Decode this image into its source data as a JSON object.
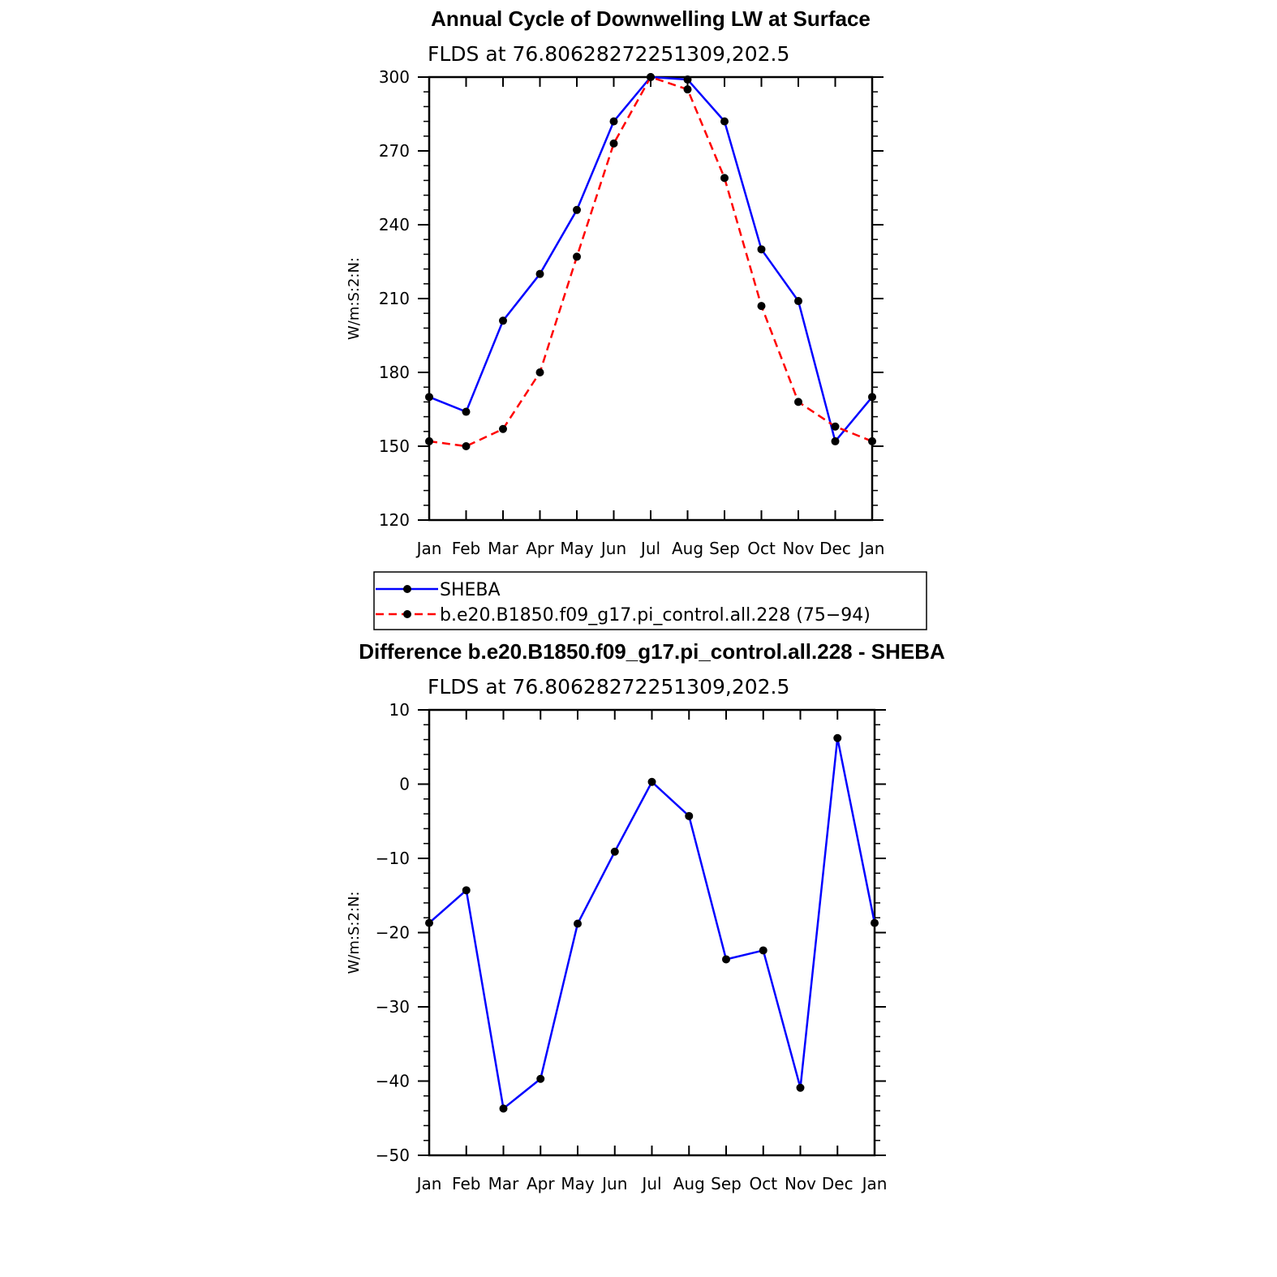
{
  "chart_data": [
    {
      "type": "line",
      "title": "Annual Cycle of Downwelling LW at Surface",
      "subtitle": "FLDS at 76.80628272251309,202.5",
      "ylabel": "W/m:S:2:N:",
      "categories": [
        "Jan",
        "Feb",
        "Mar",
        "Apr",
        "May",
        "Jun",
        "Jul",
        "Aug",
        "Sep",
        "Oct",
        "Nov",
        "Dec",
        "Jan"
      ],
      "ylim": [
        120,
        300
      ],
      "yticks": [
        120,
        150,
        180,
        210,
        240,
        270,
        300
      ],
      "series": [
        {
          "name": "SHEBA",
          "color": "#0000ff",
          "dash": "solid",
          "values": [
            170,
            164,
            201,
            220,
            246,
            282,
            300,
            299,
            282,
            230,
            209,
            152,
            170
          ]
        },
        {
          "name": "b.e20.B1850.f09_g17.pi_control.all.228 (75−94)",
          "color": "#ff0000",
          "dash": "dashed",
          "values": [
            152,
            150,
            157,
            180,
            227,
            273,
            300,
            295,
            259,
            207,
            168,
            158,
            152
          ]
        }
      ],
      "legend_position": "below"
    },
    {
      "type": "line",
      "title": "Difference b.e20.B1850.f09_g17.pi_control.all.228 - SHEBA",
      "subtitle": "FLDS at 76.80628272251309,202.5",
      "ylabel": "W/m:S:2:N:",
      "categories": [
        "Jan",
        "Feb",
        "Mar",
        "Apr",
        "May",
        "Jun",
        "Jul",
        "Aug",
        "Sep",
        "Oct",
        "Nov",
        "Dec",
        "Jan"
      ],
      "ylim": [
        -50,
        10
      ],
      "yticks": [
        -50,
        -40,
        -30,
        -20,
        -10,
        0,
        10
      ],
      "yticklabels": [
        "−50",
        "−40",
        "−30",
        "−20",
        "−10",
        "0",
        "10"
      ],
      "series": [
        {
          "color": "#0000ff",
          "dash": "solid",
          "values": [
            -18.7,
            -14.3,
            -43.7,
            -39.7,
            -18.8,
            -9.1,
            0.3,
            -4.3,
            -23.6,
            -22.4,
            -40.9,
            6.2,
            -18.7
          ]
        }
      ]
    }
  ]
}
